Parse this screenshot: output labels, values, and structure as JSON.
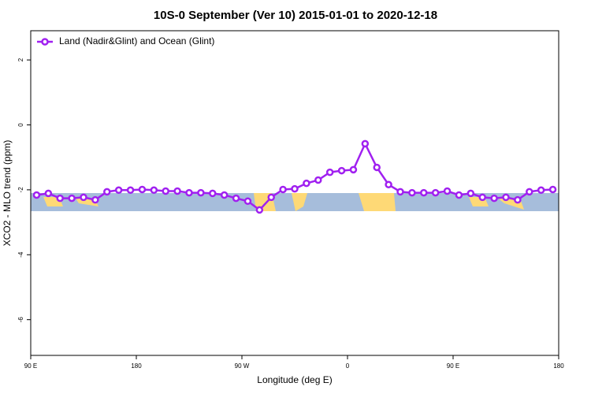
{
  "chart_data": {
    "type": "line",
    "title": "10S-0 September (Ver 10)   2015-01-01 to 2020-12-18",
    "x_label": "Longitude (deg E)",
    "y_label": "XCO2 - MLO trend (ppm)",
    "x": [
      95,
      105,
      115,
      125,
      135,
      145,
      155,
      165,
      175,
      185,
      195,
      205,
      215,
      225,
      235,
      245,
      255,
      265,
      275,
      285,
      295,
      305,
      315,
      325,
      335,
      345,
      355,
      365,
      375,
      385,
      395,
      405,
      415,
      425,
      435,
      445,
      455,
      465,
      475,
      485,
      495,
      505,
      515,
      525,
      535
    ],
    "series": [
      {
        "name": "Land (Nadir&Glint) and Ocean (Glint)",
        "color": "#a020f0",
        "values": [
          -2.16,
          -2.11,
          -2.26,
          -2.26,
          -2.23,
          -2.31,
          -2.06,
          -2.01,
          -2.01,
          -1.99,
          -2.01,
          -2.04,
          -2.04,
          -2.09,
          -2.09,
          -2.11,
          -2.16,
          -2.26,
          -2.35,
          -2.62,
          -2.23,
          -1.99,
          -1.97,
          -1.8,
          -1.7,
          -1.46,
          -1.41,
          -1.38,
          -0.58,
          -1.31,
          -1.84,
          -2.06,
          -2.09,
          -2.09,
          -2.09,
          -2.04,
          -2.16,
          -2.11,
          -2.23,
          -2.26,
          -2.23,
          -2.31,
          -2.06,
          -2.01,
          -1.99
        ]
      }
    ],
    "xlim": [
      90,
      540
    ],
    "xticks": [
      {
        "value": 90,
        "label": "90 E"
      },
      180,
      {
        "value": 270,
        "label": "90 W"
      },
      {
        "value": 360,
        "label": "0"
      },
      {
        "value": 450,
        "label": "90 E"
      },
      {
        "value": 540,
        "label": "180"
      }
    ],
    "ylim": [
      -7.1,
      2.9
    ],
    "yticks": [
      2,
      0,
      -2,
      -4,
      -6
    ],
    "legend": "top-left"
  }
}
